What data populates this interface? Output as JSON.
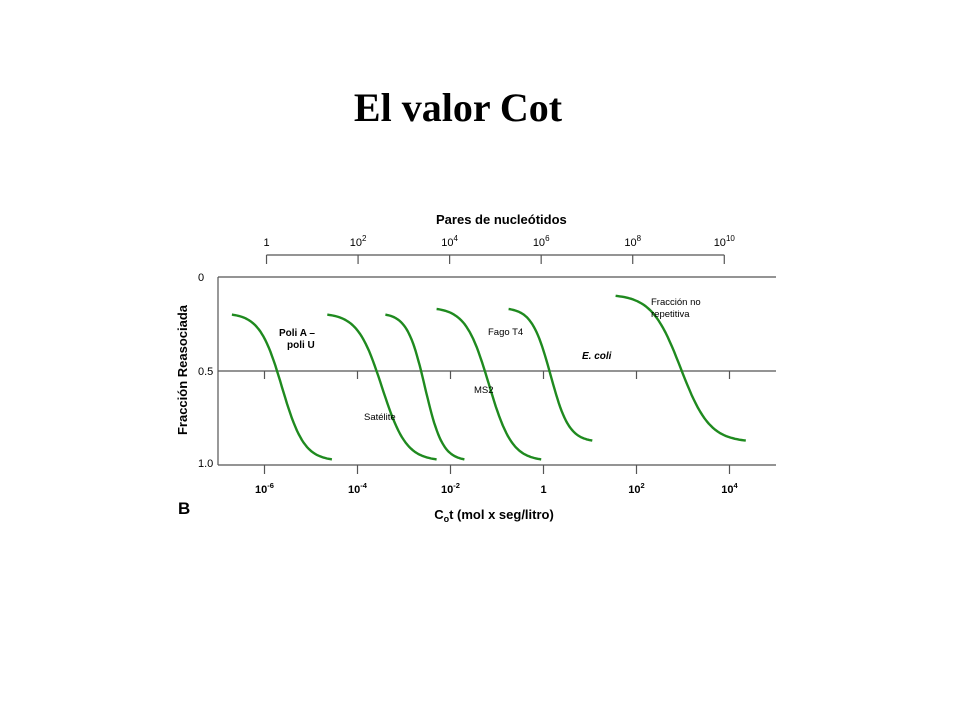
{
  "title": "El valor Cot",
  "chart_data": {
    "type": "line",
    "panel_label": "B",
    "ylabel": "Fracción Reasociada",
    "y_ticks": [
      "0",
      "0.5",
      "1.0"
    ],
    "ylim": [
      0,
      1
    ],
    "y_inverted": true,
    "xlabel_prefix": "C",
    "xlabel_sub": "o",
    "xlabel_suffix": "t (mol x seg/litro)",
    "x_scale": "log",
    "xlim": [
      -7,
      5
    ],
    "x_ticks": [
      {
        "base": "10",
        "exp": "-6",
        "value": -6
      },
      {
        "base": "10",
        "exp": "-4",
        "value": -4
      },
      {
        "base": "10",
        "exp": "-2",
        "value": -2
      },
      {
        "base": "1",
        "exp": "",
        "value": 0
      },
      {
        "base": "10",
        "exp": "2",
        "value": 2
      },
      {
        "base": "10",
        "exp": "4",
        "value": 4
      }
    ],
    "top_axis_title": "Pares de nucleótidos",
    "top_ticks": [
      {
        "base": "1",
        "exp": "",
        "value": 0
      },
      {
        "base": "10",
        "exp": "2",
        "value": 2
      },
      {
        "base": "10",
        "exp": "4",
        "value": 4
      },
      {
        "base": "10",
        "exp": "6",
        "value": 6
      },
      {
        "base": "10",
        "exp": "8",
        "value": 8
      },
      {
        "base": "10",
        "exp": "10",
        "value": 10
      }
    ],
    "top_range": [
      -1.06,
      11.13
    ],
    "line_color": "#1f8a1f",
    "series": [
      {
        "label_lines": [
          "Poli A –",
          "poli U"
        ],
        "label_style": "bold",
        "x0": -6.7,
        "x1": -4.55,
        "y0": 0.2,
        "y1": 0.97
      },
      {
        "label_lines": [
          "Satélite"
        ],
        "label_style": "normal",
        "x0": -4.65,
        "x1": -2.3,
        "y0": 0.2,
        "y1": 0.97
      },
      {
        "label_lines": [
          "MS2"
        ],
        "label_style": "normal",
        "x0": -3.4,
        "x1": -1.7,
        "y0": 0.2,
        "y1": 0.97
      },
      {
        "label_lines": [
          "Fago T4"
        ],
        "label_style": "normal",
        "x0": -2.3,
        "x1": -0.05,
        "y0": 0.17,
        "y1": 0.97
      },
      {
        "label_lines": [
          "E. coli"
        ],
        "label_style": "bolditalic",
        "x0": -0.75,
        "x1": 1.05,
        "y0": 0.17,
        "y1": 0.87
      },
      {
        "label_lines": [
          "Fracción no",
          "repetitiva"
        ],
        "label_style": "normal",
        "x0": 1.55,
        "x1": 4.35,
        "y0": 0.1,
        "y1": 0.87
      }
    ],
    "grid": false,
    "legend": "none"
  }
}
